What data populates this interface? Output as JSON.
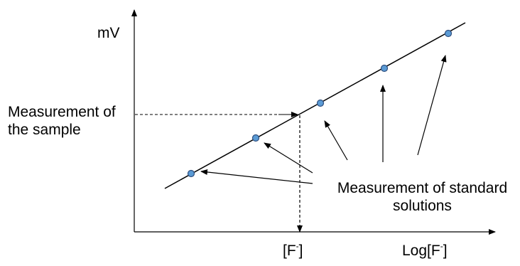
{
  "labels": {
    "y_axis": "mV",
    "x_axis_prefix": "Log[F",
    "x_axis_superscript": "-",
    "x_axis_suffix": "]",
    "sample_x_prefix": "[F",
    "sample_x_superscript": "-",
    "sample_x_suffix": "]",
    "sample_measurement_line1": "Measurement of",
    "sample_measurement_line2": "the sample",
    "standards_line1": "Measurement of standard",
    "standards_line2": "solutions"
  },
  "standard_points_count": 5,
  "colors": {
    "point_fill": "#5b9bd5",
    "point_stroke": "#2f4f7f",
    "line": "#000000"
  }
}
